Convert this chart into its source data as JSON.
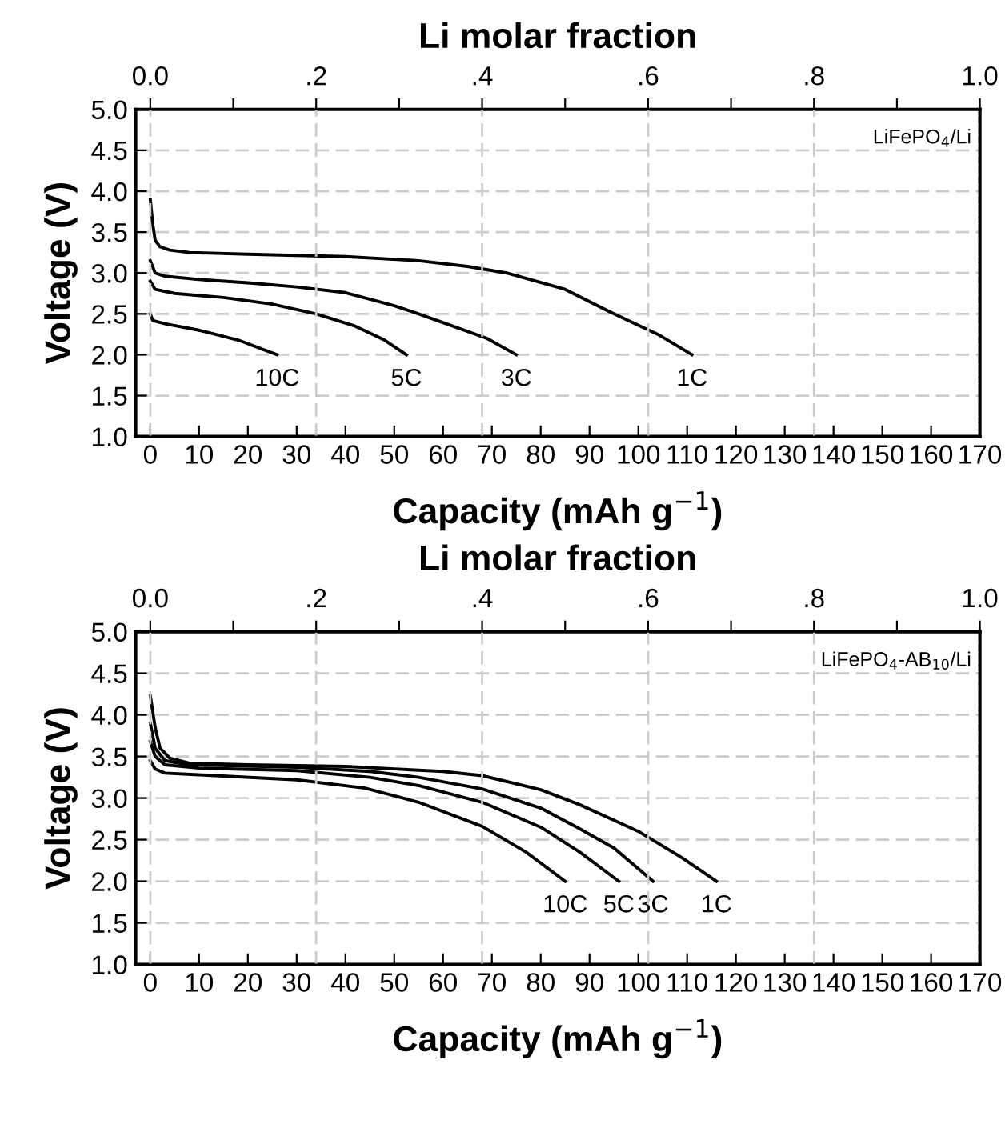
{
  "chart_data": [
    {
      "type": "line",
      "xlabel": "Capacity (mAh g$^{−1}$)",
      "ylabel": "Voltage (V)",
      "x2label": "Li molar fraction",
      "xlim": [
        -3,
        170
      ],
      "xticks": [
        0,
        10,
        20,
        30,
        40,
        50,
        60,
        70,
        80,
        90,
        100,
        110,
        120,
        130,
        140,
        150,
        160,
        170
      ],
      "ylim": [
        1.0,
        5.0
      ],
      "yticks": [
        {
          "value": 1.0,
          "label": "1.0"
        },
        {
          "value": 1.5,
          "label": "1.5"
        },
        {
          "value": 2.0,
          "label": "2.0"
        },
        {
          "value": 2.5,
          "label": "2.5"
        },
        {
          "value": 3.0,
          "label": "3.0"
        },
        {
          "value": 3.5,
          "label": "3.5"
        },
        {
          "value": 4.0,
          "label": "4.0"
        },
        {
          "value": 4.5,
          "label": "4.5"
        },
        {
          "value": 5.0,
          "label": "5.0"
        }
      ],
      "x2lim": [
        -0.01765,
        1.0
      ],
      "x2ticks": [
        {
          "value": 0,
          "label": "0.0"
        },
        {
          "value": 0.1,
          "label": null
        },
        {
          "value": 0.2,
          "label": ".2"
        },
        {
          "value": 0.3,
          "label": null
        },
        {
          "value": 0.4,
          "label": ".4"
        },
        {
          "value": 0.5,
          "label": null
        },
        {
          "value": 0.6,
          "label": ".6"
        },
        {
          "value": 0.7,
          "label": null
        },
        {
          "value": 0.8,
          "label": ".8"
        },
        {
          "value": 0.9,
          "label": null
        },
        {
          "value": 1.0,
          "label": "1.0"
        }
      ],
      "grid": true,
      "line_style": "solid",
      "annotations": [
        "LiFePO$_{4}$/Li"
      ],
      "series": [
        {
          "name": "1C",
          "color": "#000000",
          "x": [
            0,
            0.5,
            1,
            2,
            4,
            8,
            20,
            40,
            55,
            65,
            73,
            85,
            95,
            104,
            111
          ],
          "values": [
            3.9,
            3.6,
            3.4,
            3.32,
            3.28,
            3.25,
            3.23,
            3.2,
            3.15,
            3.08,
            3.0,
            2.8,
            2.5,
            2.25,
            2.0
          ]
        },
        {
          "name": "3C",
          "color": "#000000",
          "x": [
            0,
            1,
            3,
            10,
            20,
            30,
            40,
            50,
            55,
            62,
            69,
            75
          ],
          "values": [
            3.15,
            3.0,
            2.96,
            2.92,
            2.88,
            2.83,
            2.76,
            2.6,
            2.5,
            2.35,
            2.2,
            2.0
          ]
        },
        {
          "name": "5C",
          "color": "#000000",
          "x": [
            0,
            1,
            5,
            15,
            25,
            34,
            42,
            48,
            52.5
          ],
          "values": [
            2.9,
            2.8,
            2.75,
            2.7,
            2.62,
            2.5,
            2.35,
            2.18,
            2.0
          ]
        },
        {
          "name": "10C",
          "color": "#000000",
          "x": [
            0,
            0.5,
            3,
            10,
            18,
            26
          ],
          "values": [
            2.5,
            2.42,
            2.38,
            2.3,
            2.18,
            2.0
          ]
        }
      ]
    },
    {
      "type": "line",
      "xlabel": "Capacity (mAh g$^{−1}$)",
      "ylabel": "Voltage (V)",
      "x2label": "Li molar fraction",
      "xlim": [
        -3,
        170
      ],
      "xticks": [
        0,
        10,
        20,
        30,
        40,
        50,
        60,
        70,
        80,
        90,
        100,
        110,
        120,
        130,
        140,
        150,
        160,
        170
      ],
      "ylim": [
        1.0,
        5.0
      ],
      "yticks": [
        {
          "value": 1.0,
          "label": "1.0"
        },
        {
          "value": 1.5,
          "label": "1.5"
        },
        {
          "value": 2.0,
          "label": "2.0"
        },
        {
          "value": 2.5,
          "label": "2.5"
        },
        {
          "value": 3.0,
          "label": "3.0"
        },
        {
          "value": 3.5,
          "label": "3.5"
        },
        {
          "value": 4.0,
          "label": "4.0"
        },
        {
          "value": 4.5,
          "label": "4.5"
        },
        {
          "value": 5.0,
          "label": "5.0"
        }
      ],
      "x2lim": [
        -0.01765,
        1.0
      ],
      "x2ticks": [
        {
          "value": 0,
          "label": "0.0"
        },
        {
          "value": 0.1,
          "label": null
        },
        {
          "value": 0.2,
          "label": ".2"
        },
        {
          "value": 0.3,
          "label": null
        },
        {
          "value": 0.4,
          "label": ".4"
        },
        {
          "value": 0.5,
          "label": null
        },
        {
          "value": 0.6,
          "label": ".6"
        },
        {
          "value": 0.7,
          "label": null
        },
        {
          "value": 0.8,
          "label": ".8"
        },
        {
          "value": 0.9,
          "label": null
        },
        {
          "value": 1.0,
          "label": "1.0"
        }
      ],
      "grid": true,
      "line_style": "solid",
      "annotations": [
        "LiFePO$_{4}$-AB$_{10}$/Li"
      ],
      "series": [
        {
          "name": "1C",
          "color": "#000000",
          "x": [
            0,
            1,
            2,
            4,
            8,
            20,
            40,
            50,
            60,
            68,
            80,
            88,
            100,
            109,
            116
          ],
          "values": [
            4.23,
            3.85,
            3.6,
            3.48,
            3.42,
            3.4,
            3.38,
            3.35,
            3.32,
            3.27,
            3.1,
            2.92,
            2.6,
            2.28,
            2.0
          ]
        },
        {
          "name": "3C",
          "color": "#000000",
          "x": [
            0,
            1,
            3,
            8,
            30,
            45,
            55,
            68,
            80,
            88,
            95,
            103
          ],
          "values": [
            3.9,
            3.6,
            3.45,
            3.4,
            3.37,
            3.32,
            3.25,
            3.11,
            2.88,
            2.63,
            2.4,
            2.0
          ]
        },
        {
          "name": "5C",
          "color": "#000000",
          "x": [
            0,
            1,
            3,
            10,
            30,
            45,
            55,
            68,
            80,
            88,
            96
          ],
          "values": [
            3.68,
            3.5,
            3.4,
            3.36,
            3.33,
            3.25,
            3.15,
            2.95,
            2.65,
            2.35,
            2.0
          ]
        },
        {
          "name": "10C",
          "color": "#000000",
          "x": [
            0,
            1,
            3,
            10,
            30,
            44,
            55,
            68,
            77,
            85
          ],
          "values": [
            3.45,
            3.35,
            3.3,
            3.28,
            3.22,
            3.12,
            2.95,
            2.66,
            2.35,
            2.0
          ]
        }
      ]
    }
  ]
}
